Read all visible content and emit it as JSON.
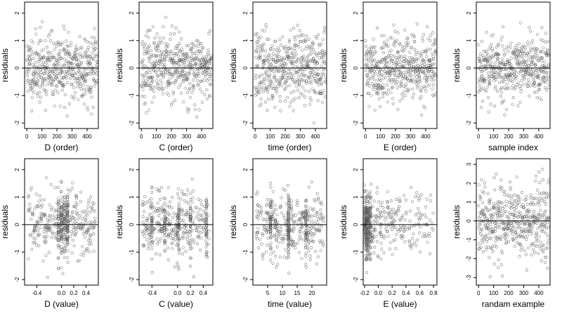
{
  "figure": {
    "ylabel": "residuals",
    "colors": {
      "axis": "#000000",
      "point": "#555555",
      "zero_line": "#000000"
    }
  },
  "chart_data": [
    {
      "type": "scatter",
      "xlabel": "D (order)",
      "ylabel": "residuals",
      "xlim": [
        -15,
        475
      ],
      "ylim": [
        -2.2,
        2.4
      ],
      "xticks": [
        0,
        100,
        200,
        300,
        400
      ],
      "yticks": [
        -2,
        -1,
        0,
        1,
        2
      ],
      "zero_line": true,
      "gen": {
        "kind": "index",
        "n": 470,
        "seed": 11,
        "spread": 0.62
      }
    },
    {
      "type": "scatter",
      "xlabel": "C (order)",
      "ylabel": "residuals",
      "xlim": [
        -15,
        475
      ],
      "ylim": [
        -2.2,
        2.4
      ],
      "xticks": [
        0,
        100,
        200,
        300,
        400
      ],
      "yticks": [
        -2,
        -1,
        0,
        1,
        2
      ],
      "zero_line": true,
      "gen": {
        "kind": "index",
        "n": 470,
        "seed": 23,
        "spread": 0.6
      }
    },
    {
      "type": "scatter",
      "xlabel": "time (order)",
      "ylabel": "residuals",
      "xlim": [
        -15,
        475
      ],
      "ylim": [
        -2.2,
        2.4
      ],
      "xticks": [
        0,
        100,
        200,
        300,
        400
      ],
      "yticks": [
        -2,
        -1,
        0,
        1,
        2
      ],
      "zero_line": true,
      "gen": {
        "kind": "index",
        "n": 470,
        "seed": 37,
        "spread": 0.65
      }
    },
    {
      "type": "scatter",
      "xlabel": "E (order)",
      "ylabel": "residuals",
      "xlim": [
        -15,
        475
      ],
      "ylim": [
        -2.2,
        2.4
      ],
      "xticks": [
        0,
        100,
        200,
        300,
        400
      ],
      "yticks": [
        -2,
        -1,
        0,
        1,
        2
      ],
      "zero_line": true,
      "gen": {
        "kind": "index",
        "n": 470,
        "seed": 41,
        "spread": 0.6
      }
    },
    {
      "type": "scatter",
      "xlabel": "sample index",
      "ylabel": "residuals",
      "xlim": [
        -15,
        475
      ],
      "ylim": [
        -2.2,
        2.4
      ],
      "xticks": [
        0,
        100,
        200,
        300,
        400
      ],
      "yticks": [
        -2,
        -1,
        0,
        1,
        2
      ],
      "zero_line": true,
      "gen": {
        "kind": "index",
        "n": 470,
        "seed": 53,
        "spread": 0.6
      }
    },
    {
      "type": "scatter",
      "xlabel": "D (value)",
      "ylabel": "residuals",
      "xlim": [
        -0.6,
        0.6
      ],
      "ylim": [
        -2.2,
        2.4
      ],
      "xticks": [
        -0.4,
        0.0,
        0.2,
        0.4
      ],
      "xticklabels": [
        "-0.4",
        "0.0",
        "0.2",
        "0.4"
      ],
      "yticks": [
        -2,
        -1,
        0,
        1,
        2
      ],
      "zero_line": true,
      "gen": {
        "kind": "value",
        "n": 470,
        "seed": 61,
        "spread": 0.6,
        "xmin": -0.55,
        "xmax": 0.55,
        "clusters": [
          0.05,
          0.1,
          0.0,
          -0.05
        ]
      }
    },
    {
      "type": "scatter",
      "xlabel": "C (value)",
      "ylabel": "residuals",
      "xlim": [
        -0.6,
        0.55
      ],
      "ylim": [
        -2.2,
        2.4
      ],
      "xticks": [
        -0.4,
        0.0,
        0.2,
        0.4
      ],
      "xticklabels": [
        "-0.4",
        "0.0",
        "0.2",
        "0.4"
      ],
      "yticks": [
        -2,
        -1,
        0,
        1,
        2
      ],
      "zero_line": true,
      "gen": {
        "kind": "value",
        "n": 470,
        "seed": 71,
        "spread": 0.6,
        "xmin": -0.55,
        "xmax": 0.5,
        "clusters": [
          -0.4,
          -0.2,
          0.0,
          0.02,
          0.2,
          0.45
        ]
      }
    },
    {
      "type": "scatter",
      "xlabel": "time (value)",
      "ylabel": "residuals",
      "xlim": [
        0,
        25
      ],
      "ylim": [
        -2.2,
        2.4
      ],
      "xticks": [
        5,
        10,
        15,
        20
      ],
      "yticks": [
        -2,
        -1,
        0,
        1,
        2
      ],
      "zero_line": true,
      "gen": {
        "kind": "value",
        "n": 470,
        "seed": 83,
        "spread": 0.6,
        "xmin": 1,
        "xmax": 24,
        "clusters": [
          12,
          12.2,
          6,
          18
        ]
      }
    },
    {
      "type": "scatter",
      "xlabel": "E (value)",
      "ylabel": "residuals",
      "xlim": [
        -0.22,
        0.85
      ],
      "ylim": [
        -2.2,
        2.4
      ],
      "xticks": [
        -0.2,
        0.0,
        0.2,
        0.4,
        0.6,
        0.8
      ],
      "xticklabels": [
        "-0.2",
        "0.0",
        "0.2",
        "0.4",
        "0.6",
        "0.8"
      ],
      "yticks": [
        -2,
        -1,
        0,
        1,
        2
      ],
      "zero_line": true,
      "gen": {
        "kind": "value",
        "n": 470,
        "seed": 97,
        "spread": 0.6,
        "xmin": -0.2,
        "xmax": 0.8,
        "skew": true,
        "clusters": [
          -0.18,
          -0.17,
          -0.15,
          -0.12
        ]
      }
    },
    {
      "type": "scatter",
      "xlabel": "randam example",
      "ylabel": "residuals",
      "xlim": [
        -15,
        475
      ],
      "ylim": [
        -3.4,
        3.3
      ],
      "xticks": [
        0,
        100,
        200,
        300,
        400
      ],
      "yticks": [
        -3,
        -2,
        -1,
        0,
        1,
        2,
        3
      ],
      "zero_line": true,
      "gen": {
        "kind": "index",
        "n": 470,
        "seed": 109,
        "spread": 1.0
      }
    }
  ]
}
